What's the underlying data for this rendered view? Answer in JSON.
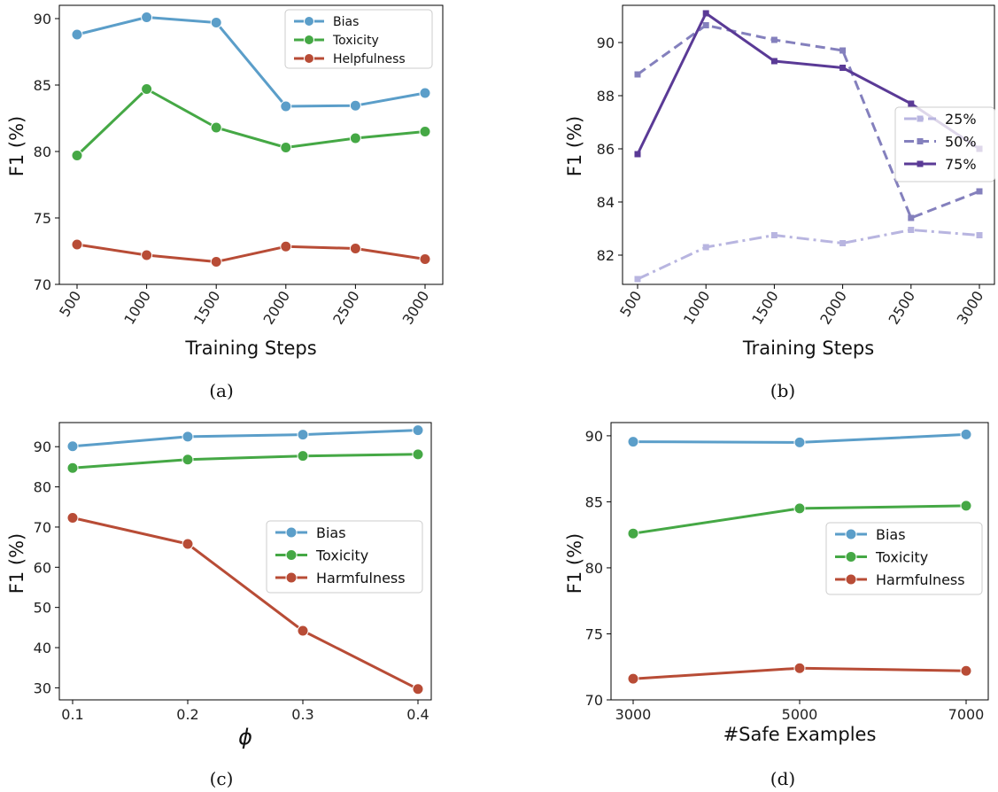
{
  "chart_data": [
    {
      "id": "a",
      "type": "line",
      "caption": "(a)",
      "xlabel": "Training Steps",
      "ylabel": "F1  (%)",
      "x": [
        "500",
        "1000",
        "1500",
        "2000",
        "2500",
        "3000"
      ],
      "xticks": [
        "500",
        "1000",
        "1500",
        "2000",
        "2500",
        "3000"
      ],
      "ylim": [
        70,
        91
      ],
      "yticks": [
        "70",
        "75",
        "80",
        "85",
        "90"
      ],
      "grid": false,
      "legend": "top-right",
      "series": [
        {
          "name": "Bias",
          "color": "#5b9ec9",
          "values": [
            88.8,
            90.1,
            89.7,
            83.4,
            83.45,
            84.4
          ]
        },
        {
          "name": "Toxicity",
          "color": "#45a845",
          "values": [
            79.7,
            84.7,
            81.8,
            80.3,
            81.0,
            81.5
          ]
        },
        {
          "name": "Helpfulness",
          "color": "#b84c36",
          "values": [
            73.0,
            72.2,
            71.7,
            72.85,
            72.7,
            71.9
          ]
        }
      ]
    },
    {
      "id": "b",
      "type": "line",
      "caption": "(b)",
      "xlabel": "Training Steps",
      "ylabel": "F1  (%)",
      "x": [
        "500",
        "1000",
        "1500",
        "2000",
        "2500",
        "3000"
      ],
      "xticks": [
        "500",
        "1000",
        "1500",
        "2000",
        "2500",
        "3000"
      ],
      "ylim": [
        80.9,
        91.4
      ],
      "yticks": [
        "82",
        "84",
        "86",
        "88",
        "90"
      ],
      "grid": false,
      "legend": "center-right",
      "series": [
        {
          "name": "25%",
          "color": "#b8b5e0",
          "dash": "dashdot",
          "values": [
            81.1,
            82.3,
            82.75,
            82.45,
            82.95,
            82.75
          ]
        },
        {
          "name": "50%",
          "color": "#8480bd",
          "dash": "dashed",
          "values": [
            88.8,
            90.65,
            90.1,
            89.7,
            83.4,
            84.4
          ]
        },
        {
          "name": "75%",
          "color": "#5a3a96",
          "dash": "solid",
          "values": [
            85.8,
            91.1,
            89.3,
            89.05,
            87.7,
            86.0
          ]
        }
      ]
    },
    {
      "id": "c",
      "type": "line",
      "caption": "(c)",
      "xlabel": "ϕ",
      "ylabel": "F1  (%)",
      "x": [
        0.1,
        0.2,
        0.3,
        0.4
      ],
      "xticks": [
        "0.1",
        "0.2",
        "0.3",
        "0.4"
      ],
      "ylim": [
        27,
        96
      ],
      "yticks": [
        "30",
        "40",
        "50",
        "60",
        "70",
        "80",
        "90"
      ],
      "grid": false,
      "legend": "center-right",
      "series": [
        {
          "name": "Bias",
          "color": "#5b9ec9",
          "values": [
            90.1,
            92.5,
            93.0,
            94.1
          ]
        },
        {
          "name": "Toxicity",
          "color": "#45a845",
          "values": [
            84.7,
            86.8,
            87.7,
            88.1
          ]
        },
        {
          "name": "Harmfulness",
          "color": "#b84c36",
          "values": [
            72.3,
            65.8,
            44.2,
            29.7
          ]
        }
      ]
    },
    {
      "id": "d",
      "type": "line",
      "caption": "(d)",
      "xlabel": "#Safe Examples",
      "ylabel": "F1  (%)",
      "x": [
        3000,
        5000,
        7000
      ],
      "xticks": [
        "3000",
        "5000",
        "7000"
      ],
      "ylim": [
        70,
        91
      ],
      "yticks": [
        "70",
        "75",
        "80",
        "85",
        "90"
      ],
      "grid": false,
      "legend": "center-right",
      "series": [
        {
          "name": "Bias",
          "color": "#5b9ec9",
          "values": [
            89.55,
            89.5,
            90.1
          ]
        },
        {
          "name": "Toxicity",
          "color": "#45a845",
          "values": [
            82.6,
            84.5,
            84.7
          ]
        },
        {
          "name": "Harmfulness",
          "color": "#b84c36",
          "values": [
            71.6,
            72.4,
            72.2
          ]
        }
      ]
    }
  ]
}
